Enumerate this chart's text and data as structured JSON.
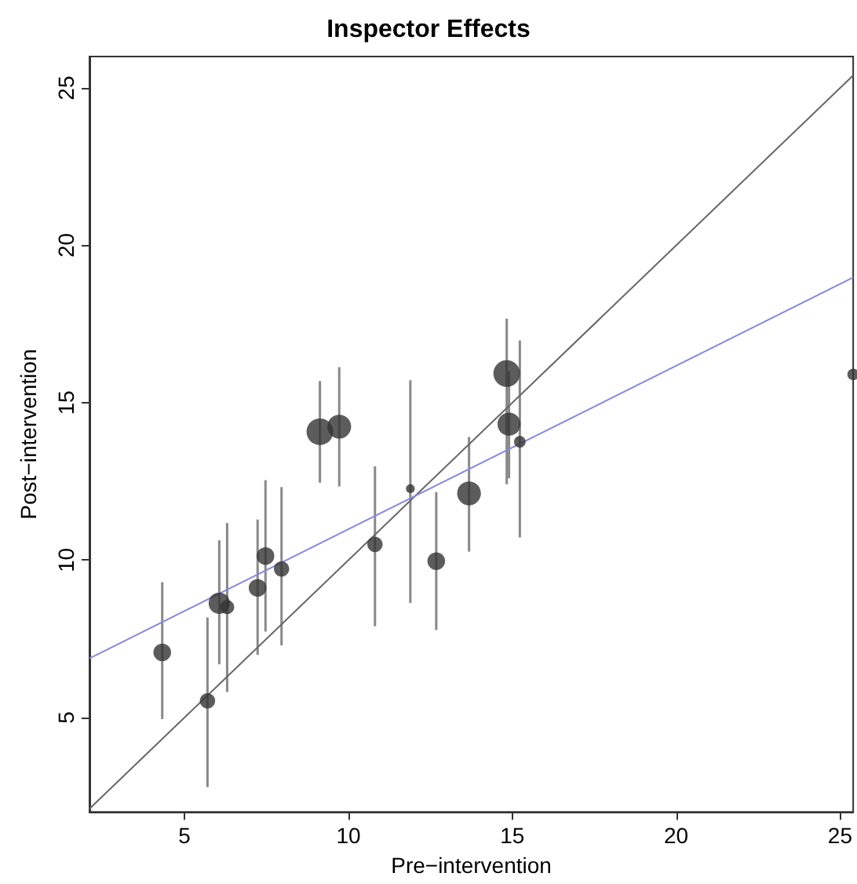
{
  "chart_data": {
    "type": "bubble",
    "title": "Inspector Effects",
    "xlabel": "Pre−intervention",
    "ylabel": "Post−intervention",
    "xlim": [
      2.1,
      25.4
    ],
    "ylim": [
      2.0,
      26.0
    ],
    "xticks": [
      5,
      10,
      15,
      20,
      25
    ],
    "yticks": [
      5,
      10,
      15,
      20,
      25
    ],
    "grid": false,
    "series": [
      {
        "color": "#333333",
        "x": [
          4.32,
          5.7,
          6.06,
          6.3,
          7.23,
          7.47,
          7.96,
          9.13,
          9.72,
          10.81,
          11.89,
          12.68,
          13.68,
          14.83,
          14.9,
          15.23,
          25.4
        ],
        "values": [
          7.07,
          5.53,
          8.63,
          8.51,
          9.12,
          10.13,
          9.72,
          14.08,
          14.24,
          10.5,
          12.27,
          9.97,
          12.12,
          15.93,
          14.32,
          13.76,
          15.9
        ],
        "sizes": [
          0.44,
          0.33,
          0.64,
          0.28,
          0.44,
          0.44,
          0.33,
          1,
          0.8,
          0.33,
          0.11,
          0.44,
          0.8,
          1,
          0.75,
          0.19,
          0.19
        ],
        "errors": [
          [
            4.95,
            9.3
          ],
          [
            2.79,
            8.18
          ],
          [
            6.69,
            10.63
          ],
          [
            5.81,
            11.18
          ],
          [
            6.99,
            11.29
          ],
          [
            7.73,
            12.54
          ],
          [
            7.29,
            12.32
          ],
          [
            12.46,
            15.69
          ],
          [
            12.34,
            16.13
          ],
          [
            7.9,
            12.98
          ],
          [
            8.64,
            15.72
          ],
          [
            7.78,
            12.16
          ],
          [
            10.27,
            13.91
          ],
          [
            12.41,
            17.67
          ],
          [
            12.6,
            16.0
          ],
          [
            10.72,
            16.98
          ],
          null
        ]
      },
      {
        "type": "line",
        "color": "#666666",
        "x": [
          2.1,
          25.4
        ],
        "values": [
          2.1,
          25.4
        ]
      },
      {
        "type": "line",
        "color": "#8888dd",
        "x": [
          2.1,
          25.4
        ],
        "values": [
          6.88,
          18.98
        ]
      }
    ]
  }
}
